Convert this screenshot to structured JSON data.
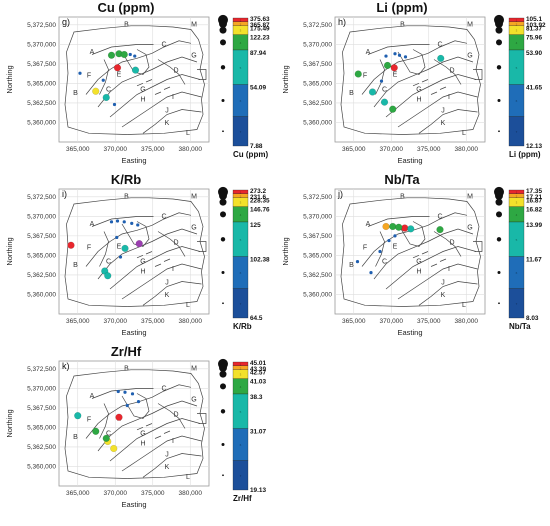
{
  "figure": {
    "x_axis_label": "Easting",
    "y_axis_label": "Northing",
    "x_ticks": [
      "365,000",
      "370,000",
      "375,000",
      "380,000"
    ],
    "y_ticks": [
      "5,372,500",
      "5,370,000",
      "5,367,500",
      "5,365,000",
      "5,362,500",
      "5,360,000"
    ],
    "zone_labels": [
      "A",
      "B",
      "B",
      "C",
      "C",
      "D",
      "E",
      "F",
      "G",
      "G",
      "H",
      "I",
      "J",
      "K",
      "L",
      "M"
    ],
    "colors": {
      "red": "#e8262d",
      "orange": "#f5a623",
      "yellow": "#f3e12b",
      "green": "#2ea843",
      "teal": "#19b8a8",
      "blue": "#1f5fb0",
      "dark_blue": "#1c4f9a",
      "purple": "#9b3fb0"
    }
  },
  "chart_data": [
    {
      "type": "scatter",
      "panel": "g)",
      "title": "Cu (ppm)",
      "legend_unit": "Cu (ppm)",
      "legend_breaks": [
        "375.63",
        "365.87",
        "175.49",
        "122.23",
        "87.94",
        "54.09",
        "7.88"
      ],
      "xlim": [
        362500,
        382500
      ],
      "ylim": [
        5357500,
        5373500
      ],
      "points": [
        {
          "x": 370300,
          "y": 5367000,
          "c": "red"
        },
        {
          "x": 367400,
          "y": 5364000,
          "c": "yellow"
        },
        {
          "x": 369500,
          "y": 5368600,
          "c": "green"
        },
        {
          "x": 370500,
          "y": 5368800,
          "c": "green"
        },
        {
          "x": 371200,
          "y": 5368700,
          "c": "green"
        },
        {
          "x": 372700,
          "y": 5366700,
          "c": "teal"
        },
        {
          "x": 368800,
          "y": 5363200,
          "c": "teal"
        },
        {
          "x": 365300,
          "y": 5366300,
          "c": "blue"
        },
        {
          "x": 372000,
          "y": 5368700,
          "c": "blue"
        },
        {
          "x": 372600,
          "y": 5368500,
          "c": "blue"
        },
        {
          "x": 369900,
          "y": 5362300,
          "c": "blue"
        },
        {
          "x": 368400,
          "y": 5365400,
          "c": "blue"
        }
      ]
    },
    {
      "type": "scatter",
      "panel": "h)",
      "title": "Li (ppm)",
      "legend_unit": "Li (ppm)",
      "legend_breaks": [
        "105.1",
        "103.92",
        "81.37",
        "75.96",
        "53.90",
        "41.65",
        "12.13"
      ],
      "xlim": [
        362500,
        382500
      ],
      "ylim": [
        5357500,
        5373500
      ],
      "points": [
        {
          "x": 370400,
          "y": 5367000,
          "c": "red"
        },
        {
          "x": 365600,
          "y": 5366200,
          "c": "green"
        },
        {
          "x": 370200,
          "y": 5361700,
          "c": "green"
        },
        {
          "x": 369500,
          "y": 5367300,
          "c": "green"
        },
        {
          "x": 369100,
          "y": 5362600,
          "c": "teal"
        },
        {
          "x": 367500,
          "y": 5363900,
          "c": "teal"
        },
        {
          "x": 376600,
          "y": 5368200,
          "c": "teal"
        },
        {
          "x": 369300,
          "y": 5368500,
          "c": "blue"
        },
        {
          "x": 371100,
          "y": 5368600,
          "c": "blue"
        },
        {
          "x": 371900,
          "y": 5368400,
          "c": "blue"
        },
        {
          "x": 370500,
          "y": 5368800,
          "c": "blue"
        },
        {
          "x": 368700,
          "y": 5365300,
          "c": "blue"
        }
      ]
    },
    {
      "type": "scatter",
      "panel": "i)",
      "title": "K/Rb",
      "legend_unit": "K/Rb",
      "legend_breaks": [
        "273.2",
        "231.6",
        "228.35",
        "146.76",
        "125",
        "102.38",
        "64.5"
      ],
      "xlim": [
        362500,
        382500
      ],
      "ylim": [
        5357500,
        5373500
      ],
      "points": [
        {
          "x": 364100,
          "y": 5366300,
          "c": "red"
        },
        {
          "x": 373200,
          "y": 5366500,
          "c": "purple"
        },
        {
          "x": 371300,
          "y": 5365900,
          "c": "teal"
        },
        {
          "x": 368600,
          "y": 5363000,
          "c": "teal"
        },
        {
          "x": 369000,
          "y": 5362400,
          "c": "teal"
        },
        {
          "x": 369500,
          "y": 5369300,
          "c": "blue"
        },
        {
          "x": 370300,
          "y": 5369400,
          "c": "blue"
        },
        {
          "x": 371200,
          "y": 5369300,
          "c": "blue"
        },
        {
          "x": 372200,
          "y": 5369100,
          "c": "blue"
        },
        {
          "x": 373000,
          "y": 5368900,
          "c": "blue"
        },
        {
          "x": 370200,
          "y": 5367300,
          "c": "blue"
        },
        {
          "x": 370700,
          "y": 5364800,
          "c": "blue"
        }
      ]
    },
    {
      "type": "scatter",
      "panel": "j)",
      "title": "Nb/Ta",
      "legend_unit": "Nb/Ta",
      "legend_breaks": [
        "17.35",
        "17.21",
        "16.87",
        "16.82",
        "13.99",
        "11.67",
        "8.03"
      ],
      "xlim": [
        362500,
        382500
      ],
      "ylim": [
        5357500,
        5373500
      ],
      "points": [
        {
          "x": 371800,
          "y": 5368500,
          "c": "red"
        },
        {
          "x": 369300,
          "y": 5368700,
          "c": "orange"
        },
        {
          "x": 370200,
          "y": 5368700,
          "c": "green"
        },
        {
          "x": 371000,
          "y": 5368600,
          "c": "green"
        },
        {
          "x": 376500,
          "y": 5368300,
          "c": "green"
        },
        {
          "x": 372600,
          "y": 5368400,
          "c": "teal"
        },
        {
          "x": 370500,
          "y": 5367500,
          "c": "blue"
        },
        {
          "x": 369700,
          "y": 5366900,
          "c": "blue"
        },
        {
          "x": 368500,
          "y": 5365500,
          "c": "blue"
        },
        {
          "x": 367300,
          "y": 5362800,
          "c": "blue"
        },
        {
          "x": 365500,
          "y": 5364200,
          "c": "blue"
        }
      ]
    },
    {
      "type": "scatter",
      "panel": "k)",
      "title": "Zr/Hf",
      "legend_unit": "Zr/Hf",
      "legend_breaks": [
        "45.01",
        "43.39",
        "42.57",
        "41.03",
        "38.3",
        "31.07",
        "19.13"
      ],
      "xlim": [
        362500,
        382500
      ],
      "ylim": [
        5357500,
        5373500
      ],
      "points": [
        {
          "x": 370500,
          "y": 5366300,
          "c": "red"
        },
        {
          "x": 369000,
          "y": 5363200,
          "c": "yellow"
        },
        {
          "x": 369800,
          "y": 5362300,
          "c": "yellow"
        },
        {
          "x": 367400,
          "y": 5364500,
          "c": "green"
        },
        {
          "x": 368800,
          "y": 5363600,
          "c": "green"
        },
        {
          "x": 365000,
          "y": 5366500,
          "c": "teal"
        },
        {
          "x": 370400,
          "y": 5369600,
          "c": "blue"
        },
        {
          "x": 371300,
          "y": 5369500,
          "c": "blue"
        },
        {
          "x": 372300,
          "y": 5369300,
          "c": "blue"
        },
        {
          "x": 371600,
          "y": 5367800,
          "c": "blue"
        },
        {
          "x": 373100,
          "y": 5368300,
          "c": "blue"
        }
      ]
    }
  ]
}
